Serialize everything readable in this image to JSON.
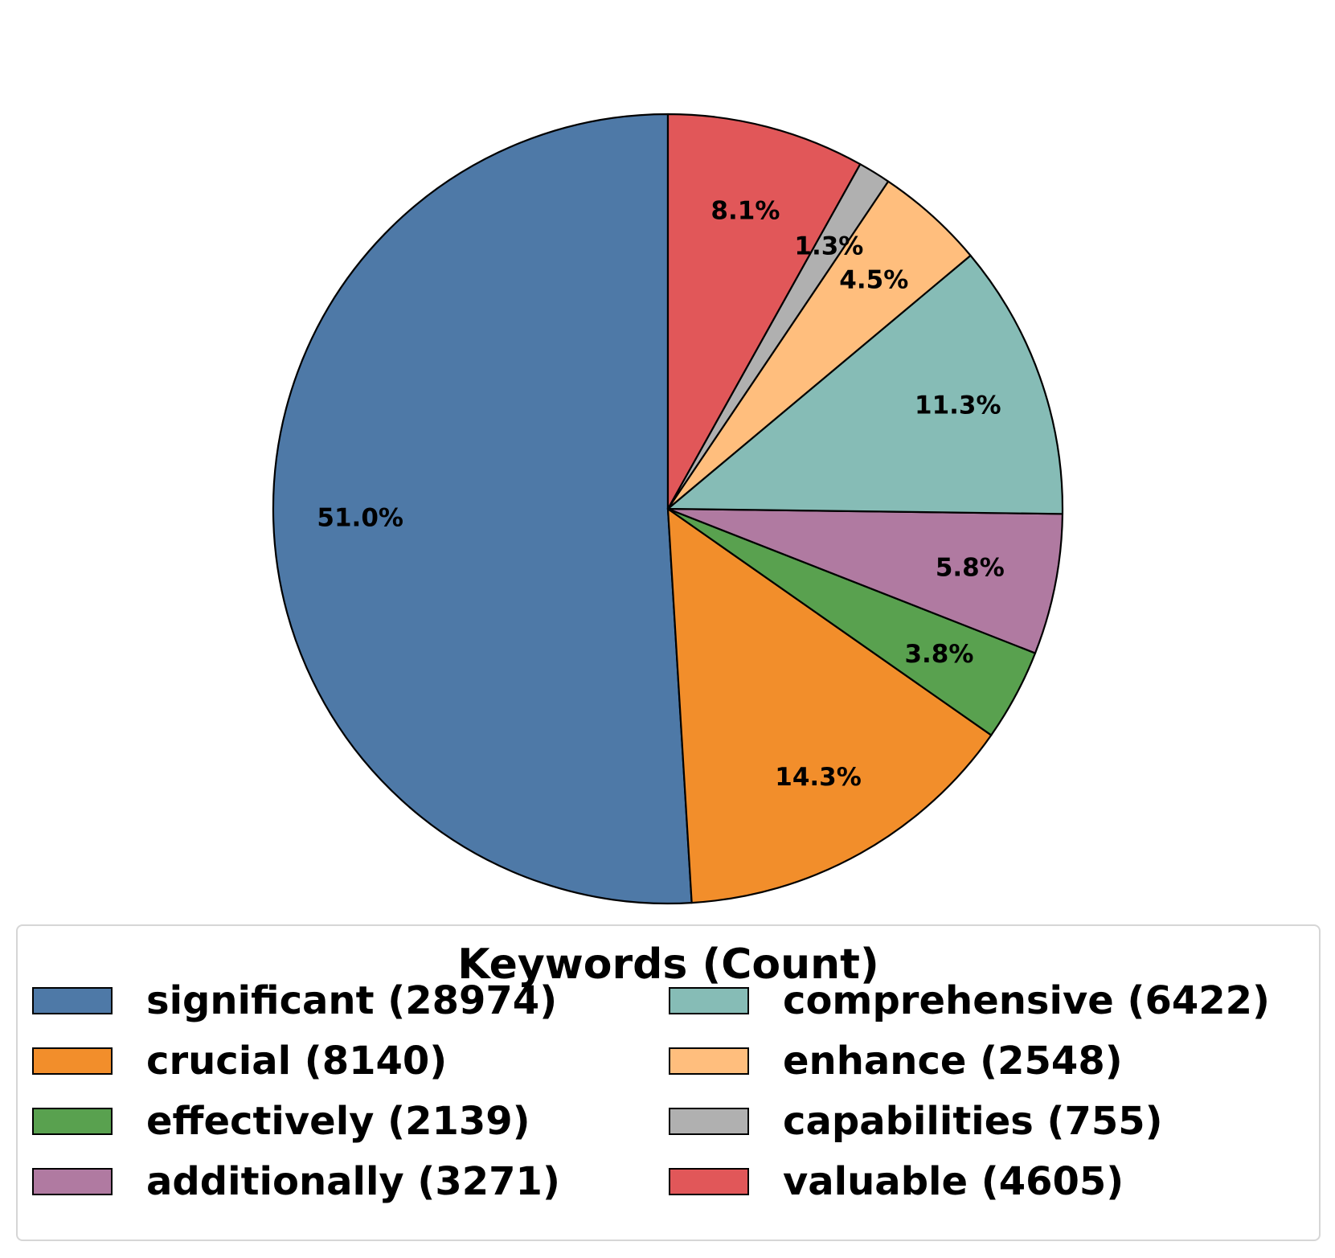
{
  "chart_data": {
    "type": "pie",
    "start_angle_deg": 90,
    "direction": "counterclockwise",
    "slices": [
      {
        "label": "significant",
        "value": 28974,
        "pct_label": "51.0%",
        "color": "#4e79a7",
        "legend": "significant (28974)"
      },
      {
        "label": "crucial",
        "value": 8140,
        "pct_label": "14.3%",
        "color": "#f28e2b",
        "legend": "crucial (8140)"
      },
      {
        "label": "effectively",
        "value": 2139,
        "pct_label": "3.8%",
        "color": "#59a14f",
        "legend": "effectively (2139)"
      },
      {
        "label": "additionally",
        "value": 3271,
        "pct_label": "5.8%",
        "color": "#b07aa1",
        "legend": "additionally (3271)"
      },
      {
        "label": "comprehensive",
        "value": 6422,
        "pct_label": "11.3%",
        "color": "#86bcb6",
        "legend": "comprehensive (6422)"
      },
      {
        "label": "enhance",
        "value": 2548,
        "pct_label": "4.5%",
        "color": "#ffbe7d",
        "legend": "enhance (2548)"
      },
      {
        "label": "capabilities",
        "value": 755,
        "pct_label": "1.3%",
        "color": "#b0b0b0",
        "legend": "capabilities (755)"
      },
      {
        "label": "valuable",
        "value": 4605,
        "pct_label": "8.1%",
        "color": "#e15759",
        "legend": "valuable (4605)"
      }
    ],
    "legend": {
      "title": "Keywords (Count)",
      "placement": "bottom",
      "columns": 2
    }
  }
}
